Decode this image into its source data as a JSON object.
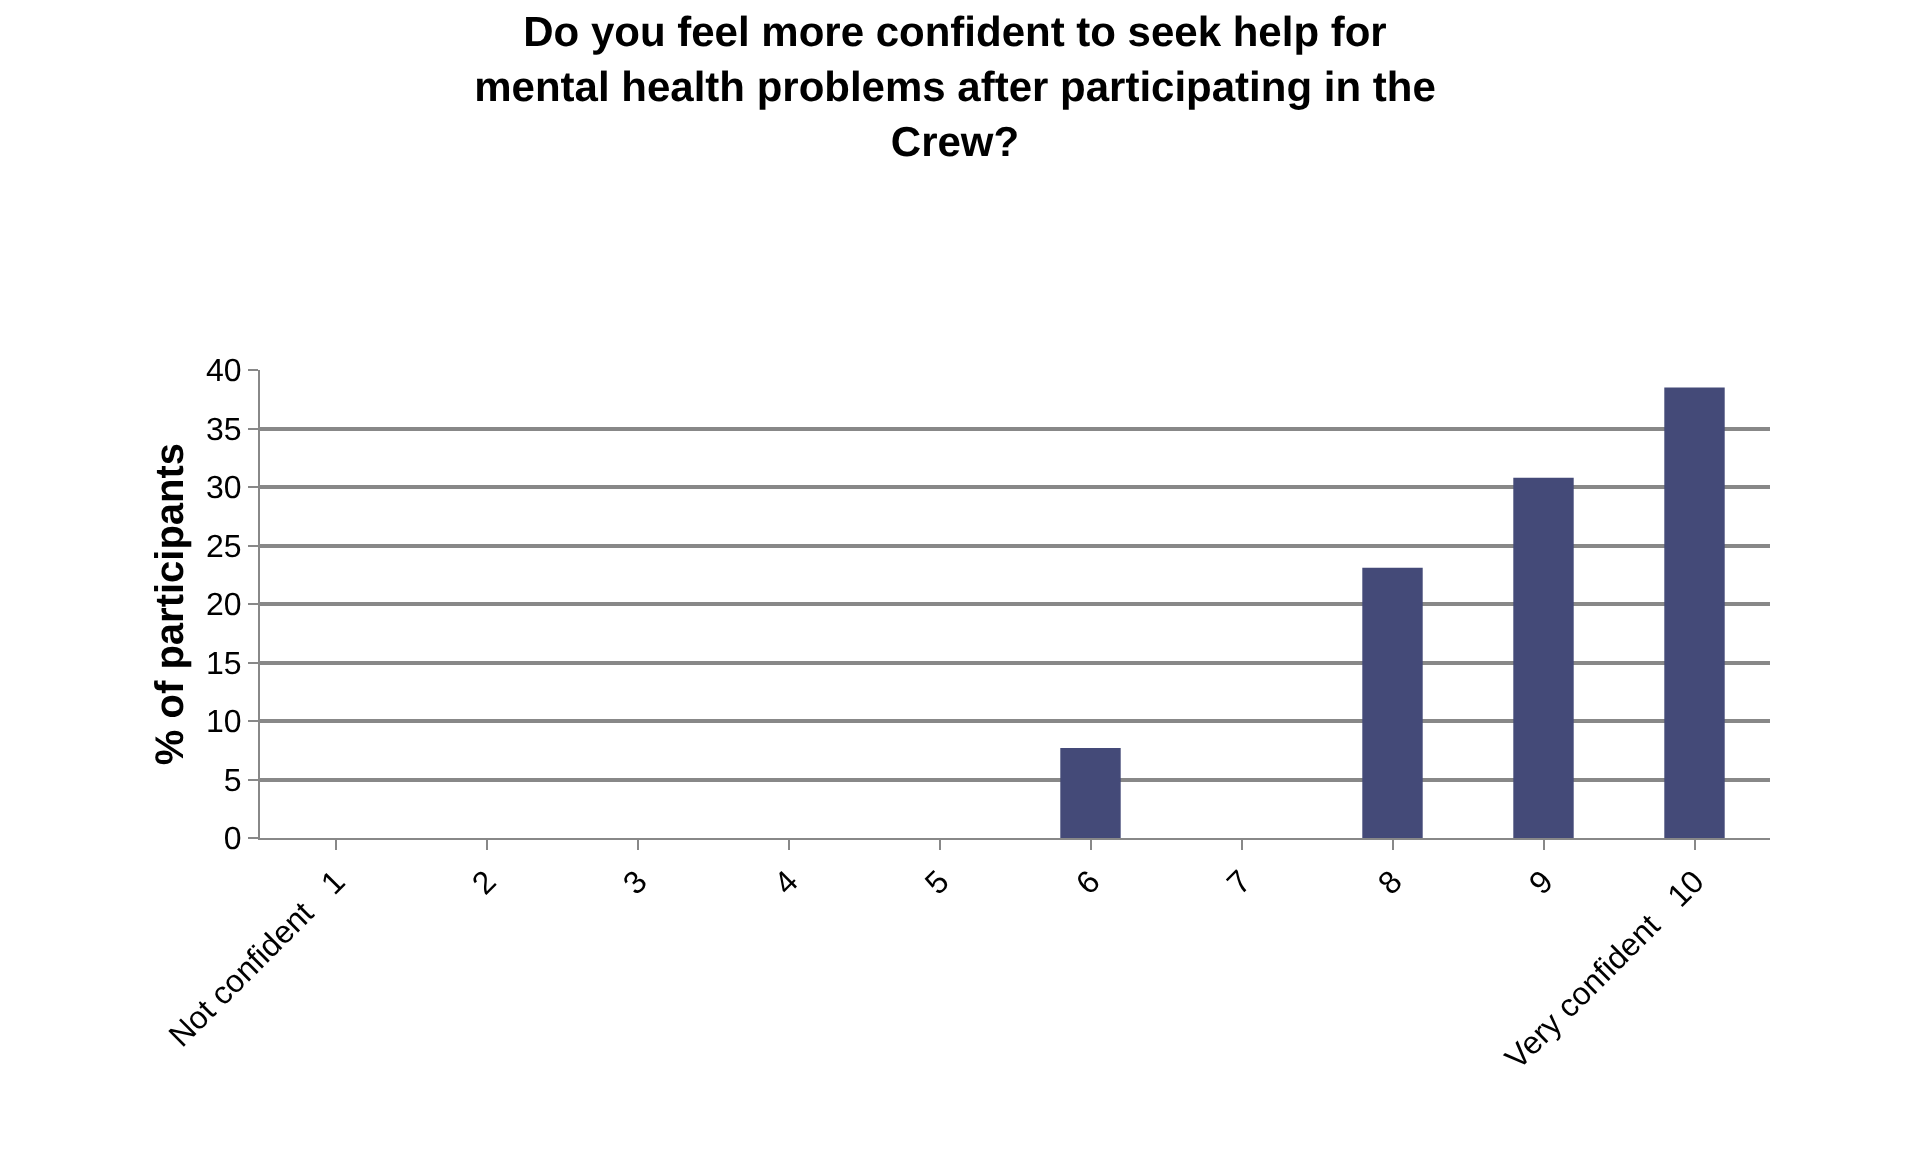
{
  "chart_data": {
    "type": "bar",
    "title": "Do you feel more confident to seek help for\nmental health problems after participating in the\nCrew?",
    "ylabel": "% of participants",
    "categories": [
      "Not confident   1",
      "2",
      "3",
      "4",
      "5",
      "6",
      "7",
      "8",
      "9",
      "Very confident   10"
    ],
    "values": [
      0,
      0,
      0,
      0,
      0,
      7.7,
      0,
      23.1,
      30.8,
      38.5
    ],
    "color": "#444a78",
    "ylim": [
      0,
      40
    ],
    "yticks": [
      0,
      5,
      10,
      15,
      20,
      25,
      30,
      35,
      40
    ],
    "grid": "y",
    "legend": false
  }
}
